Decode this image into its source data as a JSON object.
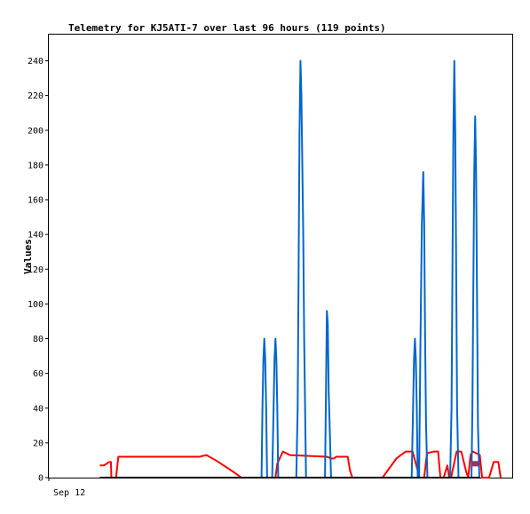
{
  "chart_data": {
    "type": "line",
    "title": "Telemetry for KJ5ATI-7 over last 96 hours (119 points)",
    "xlabel": "",
    "ylabel": "Values",
    "x_tick_labels": [
      "Sep 12"
    ],
    "y_ticks": [
      0,
      20,
      40,
      60,
      80,
      100,
      120,
      140,
      160,
      180,
      200,
      220,
      240
    ],
    "xlim": [
      0,
      100
    ],
    "ylim": [
      0,
      255
    ],
    "grid": false,
    "legend": "none",
    "series": [
      {
        "color": "#ff0000",
        "points": [
          [
            11,
            7
          ],
          [
            11.9,
            7
          ],
          [
            13,
            9
          ],
          [
            13.4,
            9
          ],
          [
            13.5,
            0
          ],
          [
            14.5,
            0
          ],
          [
            15,
            12
          ],
          [
            32.5,
            12
          ],
          [
            34,
            13
          ],
          [
            36,
            10
          ],
          [
            40,
            3
          ],
          [
            41.5,
            0
          ],
          [
            48.9,
            0
          ],
          [
            49.3,
            8
          ],
          [
            50.5,
            15
          ],
          [
            52,
            13
          ],
          [
            60,
            12
          ],
          [
            61,
            11
          ],
          [
            61.5,
            11
          ],
          [
            62,
            12
          ],
          [
            64,
            12
          ],
          [
            64.5,
            12
          ],
          [
            65,
            4
          ],
          [
            65.5,
            0
          ],
          [
            72,
            0
          ],
          [
            75,
            11
          ],
          [
            77,
            15
          ],
          [
            78.5,
            15
          ],
          [
            80,
            0
          ],
          [
            81,
            0
          ],
          [
            81.6,
            14
          ],
          [
            83,
            15
          ],
          [
            84,
            15
          ],
          [
            84.5,
            0
          ],
          [
            85.2,
            0
          ],
          [
            86,
            7
          ],
          [
            86.4,
            0
          ],
          [
            86.8,
            0
          ],
          [
            88,
            15
          ],
          [
            89,
            15
          ],
          [
            90,
            4
          ],
          [
            90.5,
            0
          ],
          [
            91,
            13
          ],
          [
            91.5,
            15
          ],
          [
            93,
            13
          ],
          [
            93.5,
            0
          ],
          [
            95,
            0
          ],
          [
            96,
            9
          ],
          [
            97,
            9
          ],
          [
            97.5,
            0
          ]
        ]
      },
      {
        "color": "#0066cc",
        "points": [
          [
            11,
            0
          ],
          [
            45.5,
            0
          ],
          [
            45.9,
            0
          ],
          [
            46.1,
            40
          ],
          [
            46.3,
            68
          ],
          [
            46.5,
            80
          ],
          [
            46.7,
            68
          ],
          [
            46.9,
            40
          ],
          [
            47.1,
            0
          ],
          [
            48.2,
            0
          ],
          [
            48.5,
            40
          ],
          [
            48.7,
            68
          ],
          [
            48.9,
            80
          ],
          [
            49.1,
            68
          ],
          [
            49.3,
            40
          ],
          [
            49.5,
            0
          ],
          [
            51,
            0
          ],
          [
            53.4,
            0
          ],
          [
            53.7,
            40
          ],
          [
            53.9,
            120
          ],
          [
            54.1,
            200
          ],
          [
            54.3,
            240
          ],
          [
            54.5,
            220
          ],
          [
            54.7,
            180
          ],
          [
            54.9,
            140
          ],
          [
            55.1,
            80
          ],
          [
            55.3,
            40
          ],
          [
            55.5,
            0
          ],
          [
            58,
            0
          ],
          [
            59.6,
            0
          ],
          [
            59.8,
            48
          ],
          [
            60,
            96
          ],
          [
            60.2,
            88
          ],
          [
            60.4,
            48
          ],
          [
            60.6,
            30
          ],
          [
            60.9,
            0
          ],
          [
            75,
            0
          ],
          [
            78.3,
            0
          ],
          [
            78.6,
            40
          ],
          [
            78.8,
            68
          ],
          [
            79,
            80
          ],
          [
            79.2,
            68
          ],
          [
            79.4,
            40
          ],
          [
            79.6,
            0
          ],
          [
            79.9,
            0
          ],
          [
            80.2,
            80
          ],
          [
            80.5,
            146
          ],
          [
            80.8,
            176
          ],
          [
            81,
            146
          ],
          [
            81.2,
            80
          ],
          [
            81.4,
            30
          ],
          [
            81.7,
            0
          ],
          [
            85,
            0
          ],
          [
            86.6,
            0
          ],
          [
            86.9,
            40
          ],
          [
            87.1,
            120
          ],
          [
            87.3,
            200
          ],
          [
            87.5,
            240
          ],
          [
            87.7,
            200
          ],
          [
            87.9,
            120
          ],
          [
            88.1,
            40
          ],
          [
            88.4,
            0
          ],
          [
            90.5,
            0
          ],
          [
            91.2,
            0
          ],
          [
            91.4,
            40
          ],
          [
            91.6,
            108
          ],
          [
            91.8,
            176
          ],
          [
            92,
            208
          ],
          [
            92.2,
            176
          ],
          [
            92.4,
            104
          ],
          [
            92.6,
            30
          ],
          [
            92.9,
            0
          ],
          [
            93,
            0
          ]
        ]
      },
      {
        "color": "#000000",
        "points": [
          [
            11,
            0
          ],
          [
            93,
            0
          ]
        ]
      },
      {
        "color": "#993366",
        "points": [
          [
            91.2,
            8
          ],
          [
            92.8,
            8
          ]
        ]
      }
    ]
  }
}
